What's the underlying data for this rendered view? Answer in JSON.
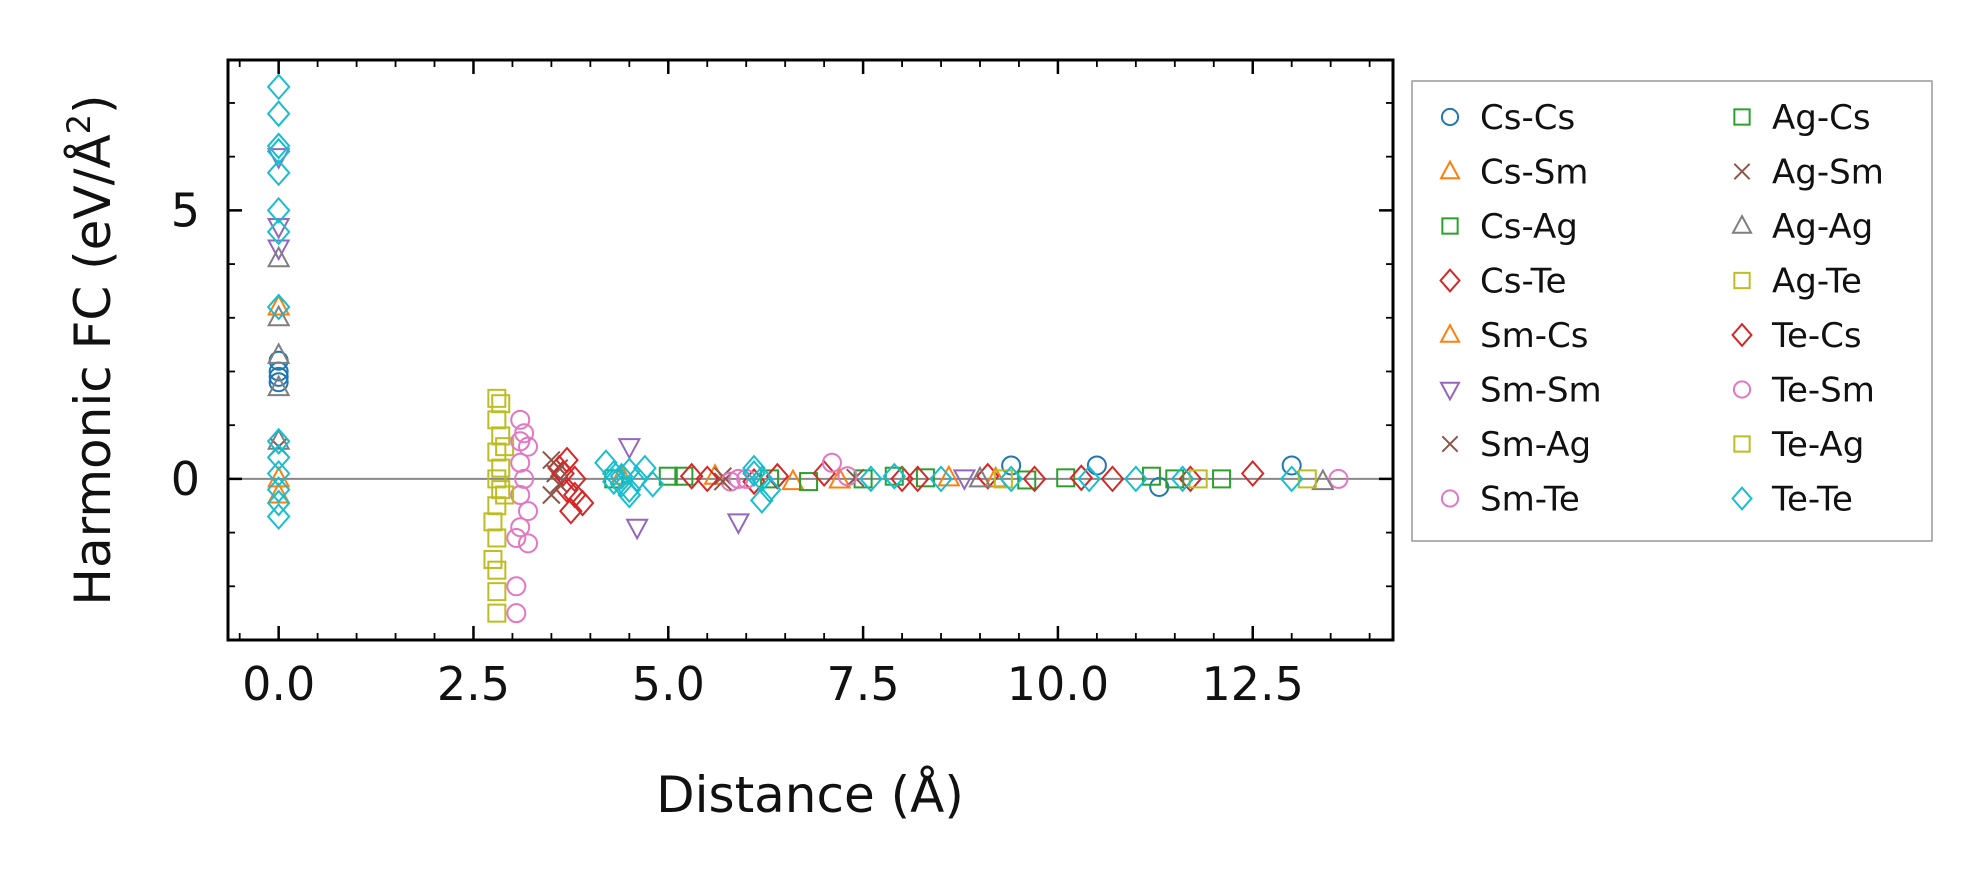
{
  "chart_data": {
    "type": "scatter",
    "title": "",
    "xlabel": "Distance (Å)",
    "ylabel": "Harmonic FC (eV/Å²)",
    "ylabel_base": "Harmonic FC (eV/Å",
    "ylabel_sup": "2",
    "ylabel_end": ")",
    "xlim": [
      -0.65,
      14.3
    ],
    "ylim": [
      -3.0,
      7.8
    ],
    "xticks": [
      0.0,
      2.5,
      5.0,
      7.5,
      10.0,
      12.5
    ],
    "xtick_labels": [
      "0.0",
      "2.5",
      "5.0",
      "7.5",
      "10.0",
      "12.5"
    ],
    "yticks": [
      0,
      5
    ],
    "ytick_labels": [
      "0",
      "5"
    ],
    "zero_line": true,
    "legend_position": "right",
    "series": [
      {
        "name": "Cs-Cs",
        "marker": "circle",
        "color": "#1f77b4",
        "x": [
          0,
          0,
          0,
          0,
          9.4,
          10.5,
          13.0,
          11.3
        ],
        "y": [
          1.8,
          2.0,
          2.2,
          1.9,
          0.25,
          0.25,
          0.25,
          -0.15
        ]
      },
      {
        "name": "Cs-Sm",
        "marker": "triangle-up",
        "color": "#ff7f0e",
        "x": [
          0,
          0,
          4.4,
          6.6,
          8.6
        ],
        "y": [
          3.2,
          -0.3,
          0.05,
          -0.05,
          0.02
        ]
      },
      {
        "name": "Cs-Ag",
        "marker": "square",
        "color": "#2ca02c",
        "x": [
          4.3,
          5.2,
          6.8,
          7.5,
          8.3,
          9.6,
          11.2,
          12.1
        ],
        "y": [
          0.0,
          0.05,
          -0.05,
          0.0,
          0.02,
          -0.02,
          0.05,
          0.0
        ]
      },
      {
        "name": "Cs-Te",
        "marker": "diamond",
        "color": "#d62728",
        "x": [
          3.7,
          3.6,
          3.8,
          3.7,
          3.9,
          3.75,
          5.3,
          6.1,
          7.0,
          8.0,
          9.1,
          9.7,
          10.7,
          11.7,
          12.5
        ],
        "y": [
          0.35,
          0.2,
          0.0,
          -0.2,
          -0.45,
          -0.6,
          0.05,
          -0.05,
          0.1,
          0.0,
          0.05,
          0.0,
          0.0,
          0.0,
          0.1
        ]
      },
      {
        "name": "Sm-Cs",
        "marker": "triangle-up",
        "color": "#ff7f0e",
        "x": [
          0,
          5.6,
          7.2,
          9.2
        ],
        "y": [
          0.0,
          0.05,
          -0.02,
          0.0
        ]
      },
      {
        "name": "Sm-Sm",
        "marker": "triangle-down",
        "color": "#9467bd",
        "x": [
          0,
          0,
          0,
          4.5,
          4.6,
          5.9,
          8.8
        ],
        "y": [
          4.7,
          6.0,
          4.3,
          0.6,
          -0.9,
          -0.8,
          0.02
        ]
      },
      {
        "name": "Sm-Ag",
        "marker": "x",
        "color": "#8c564b",
        "x": [
          0,
          3.5,
          3.55,
          3.6,
          3.5,
          5.7
        ],
        "y": [
          0.6,
          0.35,
          0.1,
          -0.1,
          -0.3,
          0.05
        ]
      },
      {
        "name": "Sm-Te",
        "marker": "circle",
        "color": "#e377c2",
        "x": [
          3.1,
          3.15,
          3.2,
          3.1,
          3.15,
          3.1,
          3.2,
          3.1,
          3.05,
          3.05,
          7.1,
          13.6,
          5.8,
          6.0
        ],
        "y": [
          1.1,
          0.85,
          0.6,
          0.3,
          0.0,
          -0.3,
          -0.6,
          -0.9,
          -1.1,
          -2.0,
          0.3,
          0.0,
          -0.05,
          0.0
        ]
      },
      {
        "name": "Ag-Cs",
        "marker": "square",
        "color": "#2ca02c",
        "x": [
          5.0,
          6.3,
          7.9,
          10.1,
          11.5
        ],
        "y": [
          0.05,
          0.0,
          0.05,
          0.02,
          0.0
        ]
      },
      {
        "name": "Ag-Sm",
        "marker": "x",
        "color": "#8c564b",
        "x": [
          3.6,
          5.7,
          7.4
        ],
        "y": [
          0.2,
          -0.05,
          0.02
        ]
      },
      {
        "name": "Ag-Ag",
        "marker": "triangle-up",
        "color": "#7f7f7f",
        "x": [
          0,
          0,
          0,
          0,
          0,
          13.4,
          9.0
        ],
        "y": [
          4.1,
          3.0,
          2.3,
          1.7,
          0.7,
          -0.05,
          0.0
        ]
      },
      {
        "name": "Ag-Te",
        "marker": "square",
        "color": "#bcbd22",
        "x": [
          2.8,
          2.8,
          2.85,
          2.8,
          2.85,
          2.8,
          2.85,
          2.8,
          2.75,
          2.8,
          2.75,
          2.8,
          2.9,
          2.9,
          13.2
        ],
        "y": [
          1.5,
          1.1,
          0.8,
          0.5,
          0.2,
          0.0,
          -0.2,
          -0.5,
          -0.8,
          -1.1,
          -1.5,
          -2.1,
          0.6,
          -0.3,
          0.0
        ]
      },
      {
        "name": "Te-Cs",
        "marker": "diamond",
        "color": "#d62728",
        "x": [
          3.65,
          3.8,
          5.5,
          6.4,
          8.2,
          10.3
        ],
        "y": [
          0.1,
          -0.3,
          0.0,
          0.05,
          0.0,
          0.02
        ]
      },
      {
        "name": "Te-Sm",
        "marker": "circle",
        "color": "#e377c2",
        "x": [
          3.2,
          3.05,
          3.1,
          5.9,
          7.3
        ],
        "y": [
          -1.2,
          -2.5,
          0.7,
          0.0,
          0.05
        ]
      },
      {
        "name": "Te-Ag",
        "marker": "square",
        "color": "#bcbd22",
        "x": [
          2.8,
          2.85,
          2.8,
          9.3,
          11.8
        ],
        "y": [
          -2.5,
          1.4,
          -1.7,
          0.0,
          0.0
        ]
      },
      {
        "name": "Te-Te",
        "marker": "diamond",
        "color": "#17becf",
        "x": [
          0,
          0,
          0,
          0,
          0,
          0,
          0,
          0,
          0,
          0,
          0,
          0,
          0,
          0,
          4.2,
          4.3,
          4.4,
          4.5,
          4.6,
          4.7,
          4.5,
          4.4,
          4.3,
          4.5,
          4.8,
          6.1,
          6.2,
          6.3,
          6.2,
          6.1,
          7.6,
          7.9,
          8.5,
          9.4,
          10.4,
          11.0,
          11.6,
          13.0
        ],
        "y": [
          7.3,
          6.8,
          6.2,
          5.7,
          5.0,
          4.6,
          3.2,
          0.7,
          0.4,
          0.1,
          -0.2,
          -0.45,
          -0.7,
          6.1,
          0.3,
          0.1,
          -0.1,
          -0.3,
          0.0,
          0.2,
          -0.2,
          0.05,
          -0.05,
          0.15,
          -0.1,
          0.2,
          0.0,
          -0.2,
          -0.4,
          0.1,
          0.0,
          0.05,
          0.0,
          0.0,
          0.0,
          0.0,
          0.0,
          0.0
        ]
      }
    ]
  }
}
